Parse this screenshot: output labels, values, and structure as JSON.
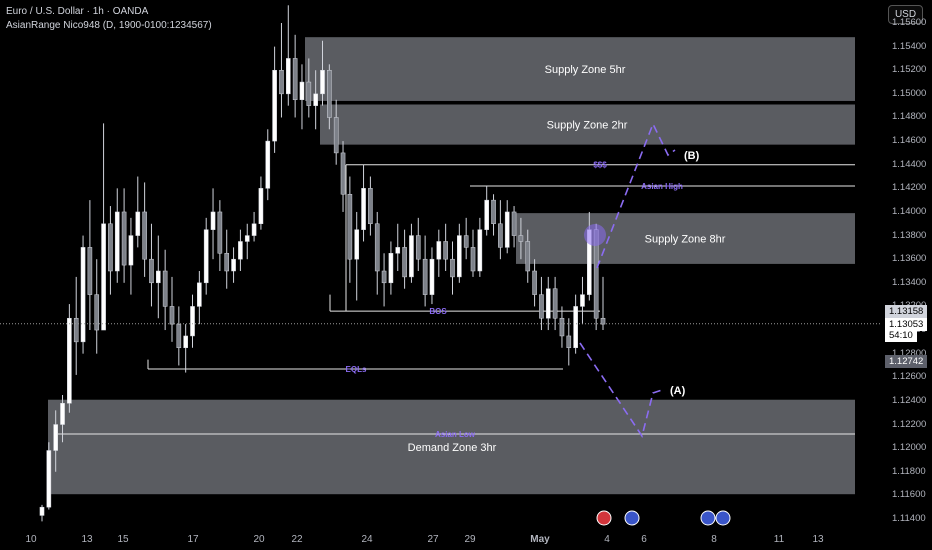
{
  "header": {
    "symbol_line": "Euro / U.S. Dollar · 1h · OANDA",
    "indicator_line": "AsianRange Nico948 (D, 1900-0100:1234567)"
  },
  "currency_button": "USD",
  "chart_data": {
    "type": "candlestick",
    "ylim": [
      1.1138,
      1.1586
    ],
    "y_ticks": [
      "1.15600",
      "1.15400",
      "1.15200",
      "1.15000",
      "1.14800",
      "1.14600",
      "1.14400",
      "1.14200",
      "1.14000",
      "1.13800",
      "1.13600",
      "1.13400",
      "1.13200",
      "1.13000",
      "1.12800",
      "1.12600",
      "1.12400",
      "1.12200",
      "1.12000",
      "1.11800",
      "1.11600",
      "1.11400"
    ],
    "x_ticks": [
      "10",
      "13",
      "15",
      "17",
      "20",
      "22",
      "24",
      "27",
      "29",
      "May",
      "4",
      "6",
      "8",
      "11",
      "13"
    ],
    "price_tags": [
      {
        "label": "1.13158",
        "value": 1.13158
      },
      {
        "label": "1.13053",
        "value": 1.13053
      },
      {
        "label": "54:10",
        "value": 1.12962
      },
      {
        "label": "1.12742",
        "value": 1.12742
      }
    ],
    "zones": [
      {
        "name": "Supply Zone 5hr",
        "from": 1.1494,
        "to": 1.1548
      },
      {
        "name": "Supply Zone 2hr",
        "from": 1.1457,
        "to": 1.1491
      },
      {
        "name": "Supply Zone 8hr",
        "from": 1.1356,
        "to": 1.1399
      },
      {
        "name": "Demand Zone 3hr",
        "from": 1.1161,
        "to": 1.1241
      }
    ],
    "levels": [
      {
        "label": "$$$",
        "value": 1.144
      },
      {
        "label": "Asian High",
        "value": 1.1422
      },
      {
        "label": "BOS",
        "value": 1.1316
      },
      {
        "label": "EQLs",
        "value": 1.1267
      },
      {
        "label": "Asian Low",
        "value": 1.1212
      }
    ],
    "scenario_labels": [
      "(B)",
      "(A)"
    ],
    "current_price": 1.13053,
    "candles": [
      [
        1.1143,
        1.1152,
        1.1138,
        1.115
      ],
      [
        1.115,
        1.1205,
        1.1148,
        1.1198
      ],
      [
        1.1198,
        1.1232,
        1.118,
        1.122
      ],
      [
        1.122,
        1.1245,
        1.1205,
        1.1238
      ],
      [
        1.1238,
        1.1322,
        1.123,
        1.131
      ],
      [
        1.131,
        1.1345,
        1.1262,
        1.129
      ],
      [
        1.129,
        1.138,
        1.128,
        1.137
      ],
      [
        1.137,
        1.141,
        1.13,
        1.133
      ],
      [
        1.133,
        1.136,
        1.128,
        1.13
      ],
      [
        1.13,
        1.1475,
        1.13,
        1.139
      ],
      [
        1.139,
        1.1405,
        1.133,
        1.135
      ],
      [
        1.135,
        1.142,
        1.134,
        1.14
      ],
      [
        1.14,
        1.142,
        1.134,
        1.1355
      ],
      [
        1.1355,
        1.1395,
        1.133,
        1.138
      ],
      [
        1.138,
        1.143,
        1.137,
        1.14
      ],
      [
        1.14,
        1.1425,
        1.1345,
        1.136
      ],
      [
        1.136,
        1.139,
        1.132,
        1.134
      ],
      [
        1.134,
        1.138,
        1.131,
        1.135
      ],
      [
        1.135,
        1.1368,
        1.13,
        1.132
      ],
      [
        1.132,
        1.1345,
        1.129,
        1.1305
      ],
      [
        1.1305,
        1.132,
        1.127,
        1.1285
      ],
      [
        1.1285,
        1.1305,
        1.1264,
        1.1295
      ],
      [
        1.1295,
        1.133,
        1.1285,
        1.132
      ],
      [
        1.132,
        1.135,
        1.1305,
        1.134
      ],
      [
        1.134,
        1.1395,
        1.133,
        1.1385
      ],
      [
        1.1385,
        1.142,
        1.136,
        1.14
      ],
      [
        1.14,
        1.141,
        1.135,
        1.1365
      ],
      [
        1.1365,
        1.1385,
        1.1335,
        1.135
      ],
      [
        1.135,
        1.137,
        1.134,
        1.136
      ],
      [
        1.136,
        1.1385,
        1.135,
        1.1375
      ],
      [
        1.1375,
        1.139,
        1.136,
        1.138
      ],
      [
        1.138,
        1.14,
        1.1375,
        1.139
      ],
      [
        1.139,
        1.143,
        1.1385,
        1.142
      ],
      [
        1.142,
        1.147,
        1.141,
        1.146
      ],
      [
        1.146,
        1.154,
        1.145,
        1.152
      ],
      [
        1.152,
        1.156,
        1.148,
        1.15
      ],
      [
        1.15,
        1.1575,
        1.149,
        1.153
      ],
      [
        1.153,
        1.155,
        1.148,
        1.1495
      ],
      [
        1.1495,
        1.1525,
        1.147,
        1.151
      ],
      [
        1.151,
        1.153,
        1.148,
        1.149
      ],
      [
        1.149,
        1.152,
        1.147,
        1.15
      ],
      [
        1.15,
        1.1545,
        1.149,
        1.152
      ],
      [
        1.152,
        1.1525,
        1.147,
        1.148
      ],
      [
        1.148,
        1.1495,
        1.144,
        1.145
      ],
      [
        1.145,
        1.146,
        1.14,
        1.1415
      ],
      [
        1.1415,
        1.143,
        1.134,
        1.136
      ],
      [
        1.136,
        1.14,
        1.1325,
        1.1385
      ],
      [
        1.1385,
        1.144,
        1.1375,
        1.142
      ],
      [
        1.142,
        1.143,
        1.138,
        1.139
      ],
      [
        1.139,
        1.14,
        1.133,
        1.135
      ],
      [
        1.135,
        1.1365,
        1.132,
        1.134
      ],
      [
        1.134,
        1.1375,
        1.133,
        1.1365
      ],
      [
        1.1365,
        1.139,
        1.135,
        1.137
      ],
      [
        1.137,
        1.1385,
        1.1335,
        1.1345
      ],
      [
        1.1345,
        1.139,
        1.134,
        1.138
      ],
      [
        1.138,
        1.1395,
        1.135,
        1.136
      ],
      [
        1.136,
        1.138,
        1.132,
        1.133
      ],
      [
        1.133,
        1.137,
        1.1322,
        1.136
      ],
      [
        1.136,
        1.1385,
        1.1345,
        1.1375
      ],
      [
        1.1375,
        1.139,
        1.135,
        1.136
      ],
      [
        1.136,
        1.1375,
        1.133,
        1.1345
      ],
      [
        1.1345,
        1.139,
        1.134,
        1.138
      ],
      [
        1.138,
        1.1395,
        1.136,
        1.137
      ],
      [
        1.137,
        1.1385,
        1.1345,
        1.135
      ],
      [
        1.135,
        1.1395,
        1.1345,
        1.1385
      ],
      [
        1.1385,
        1.1422,
        1.138,
        1.141
      ],
      [
        1.141,
        1.1415,
        1.138,
        1.139
      ],
      [
        1.139,
        1.141,
        1.136,
        1.137
      ],
      [
        1.137,
        1.141,
        1.1365,
        1.14
      ],
      [
        1.14,
        1.1405,
        1.137,
        1.138
      ],
      [
        1.138,
        1.1395,
        1.136,
        1.1375
      ],
      [
        1.1375,
        1.1385,
        1.134,
        1.135
      ],
      [
        1.135,
        1.136,
        1.132,
        1.133
      ],
      [
        1.133,
        1.1345,
        1.13,
        1.131
      ],
      [
        1.131,
        1.1345,
        1.13,
        1.1335
      ],
      [
        1.1335,
        1.1345,
        1.13,
        1.131
      ],
      [
        1.131,
        1.132,
        1.1285,
        1.1295
      ],
      [
        1.1295,
        1.131,
        1.127,
        1.1285
      ],
      [
        1.1285,
        1.133,
        1.128,
        1.132
      ],
      [
        1.132,
        1.1345,
        1.1305,
        1.133
      ],
      [
        1.133,
        1.14,
        1.1325,
        1.1385
      ],
      [
        1.1385,
        1.139,
        1.13,
        1.131
      ],
      [
        1.131,
        1.1345,
        1.13,
        1.1305
      ]
    ]
  }
}
